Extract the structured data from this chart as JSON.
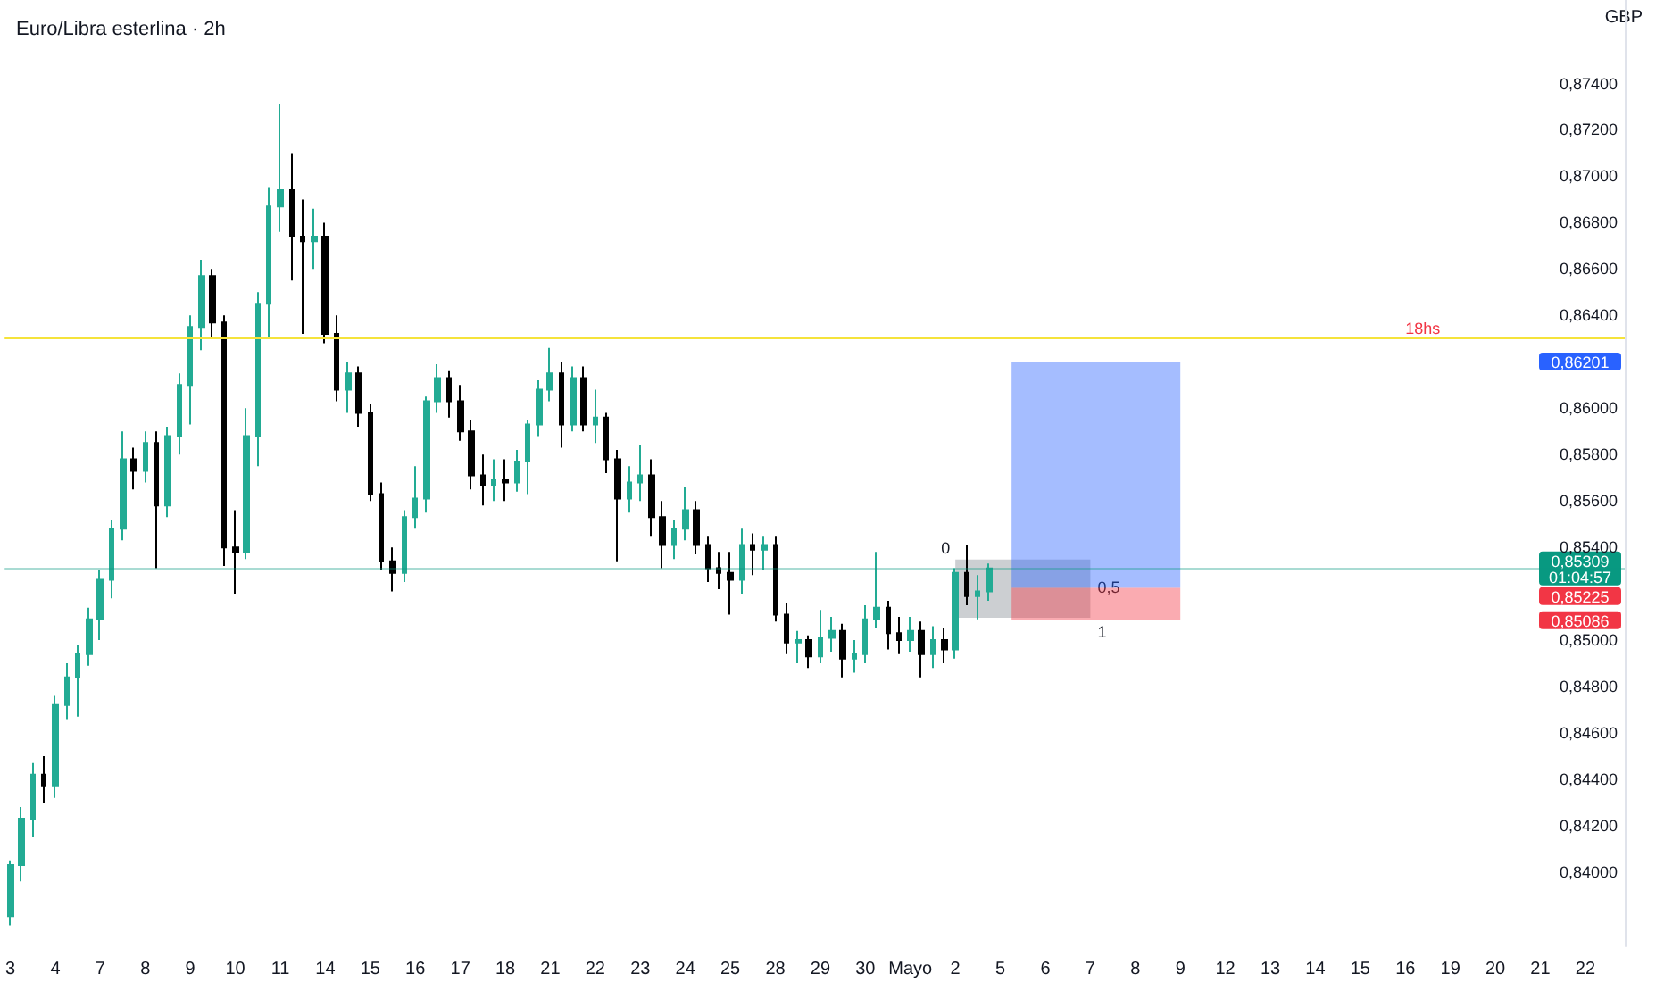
{
  "chart_data": {
    "type": "candlestick",
    "title": "Euro/Libra esterlina · 2h",
    "ylabel": "GBP",
    "categories": [
      "3",
      null,
      null,
      null,
      "4",
      null,
      null,
      null,
      "7",
      null,
      null,
      null,
      "8",
      null,
      null,
      null,
      "9",
      null,
      null,
      null,
      "10",
      null,
      null,
      null,
      "11",
      null,
      null,
      null,
      "14",
      null,
      null,
      null,
      "15",
      null,
      null,
      null,
      "16",
      null,
      null,
      null,
      "17",
      null,
      null,
      null,
      "18",
      null,
      null,
      null,
      "21",
      null,
      null,
      null,
      "22",
      null,
      null,
      null,
      "23",
      null,
      null,
      null,
      "24",
      null,
      null,
      null,
      "25",
      null,
      null,
      null,
      "28",
      null,
      null,
      null,
      "29",
      null,
      null,
      null,
      "30",
      null,
      null,
      null,
      "Mayo",
      null,
      null,
      null,
      "2",
      null,
      null,
      null,
      "5",
      null,
      null,
      null,
      "6",
      null,
      null,
      null,
      "7",
      null,
      null,
      null,
      "8",
      null,
      null,
      null,
      "9",
      null,
      null,
      null,
      "12",
      null,
      null,
      null,
      "13",
      null,
      null,
      null,
      "14",
      null,
      null,
      null,
      "15",
      null,
      null,
      null,
      "16",
      null,
      null,
      null,
      "19",
      null,
      null,
      null,
      "20",
      null,
      null,
      null,
      "21",
      null,
      null,
      null,
      "22",
      null,
      null,
      null
    ],
    "ohlc": [
      [
        0.8381,
        0.8405,
        0.8377,
        0.8403
      ],
      [
        0.8403,
        0.8428,
        0.8396,
        0.8423
      ],
      [
        0.8423,
        0.8447,
        0.8415,
        0.8442
      ],
      [
        0.8442,
        0.845,
        0.843,
        0.8437
      ],
      [
        0.8437,
        0.8476,
        0.8432,
        0.8472
      ],
      [
        0.8472,
        0.849,
        0.8466,
        0.8484
      ],
      [
        0.8484,
        0.8498,
        0.8467,
        0.8494
      ],
      [
        0.8494,
        0.8514,
        0.8489,
        0.8509
      ],
      [
        0.8509,
        0.853,
        0.85,
        0.8526
      ],
      [
        0.8526,
        0.8552,
        0.8518,
        0.8548
      ],
      [
        0.8548,
        0.859,
        0.8543,
        0.8578
      ],
      [
        0.8578,
        0.8583,
        0.8565,
        0.8573
      ],
      [
        0.8573,
        0.859,
        0.8568,
        0.8585
      ],
      [
        0.8585,
        0.859,
        0.8531,
        0.8558
      ],
      [
        0.8558,
        0.8592,
        0.8553,
        0.8588
      ],
      [
        0.8588,
        0.8615,
        0.858,
        0.861
      ],
      [
        0.861,
        0.864,
        0.8593,
        0.8635
      ],
      [
        0.8635,
        0.8664,
        0.8625,
        0.8657
      ],
      [
        0.8657,
        0.866,
        0.863,
        0.8637
      ],
      [
        0.8637,
        0.864,
        0.8532,
        0.854
      ],
      [
        0.854,
        0.8556,
        0.852,
        0.8538
      ],
      [
        0.8538,
        0.86,
        0.8535,
        0.8588
      ],
      [
        0.8588,
        0.865,
        0.8575,
        0.8645
      ],
      [
        0.8645,
        0.8695,
        0.863,
        0.8687
      ],
      [
        0.8687,
        0.8731,
        0.8676,
        0.8694
      ],
      [
        0.8694,
        0.871,
        0.8655,
        0.8674
      ],
      [
        0.8674,
        0.869,
        0.8632,
        0.8672
      ],
      [
        0.8672,
        0.8686,
        0.866,
        0.8674
      ],
      [
        0.8674,
        0.868,
        0.8628,
        0.8632
      ],
      [
        0.8632,
        0.864,
        0.8603,
        0.8608
      ],
      [
        0.8608,
        0.862,
        0.8598,
        0.8615
      ],
      [
        0.8615,
        0.8618,
        0.8592,
        0.8598
      ],
      [
        0.8598,
        0.8602,
        0.856,
        0.8563
      ],
      [
        0.8563,
        0.8568,
        0.853,
        0.8534
      ],
      [
        0.8534,
        0.854,
        0.8521,
        0.8529
      ],
      [
        0.8529,
        0.8556,
        0.8525,
        0.8553
      ],
      [
        0.8553,
        0.8575,
        0.8548,
        0.8561
      ],
      [
        0.8561,
        0.8605,
        0.8555,
        0.8603
      ],
      [
        0.8603,
        0.8619,
        0.8598,
        0.8613
      ],
      [
        0.8613,
        0.8616,
        0.8596,
        0.8603
      ],
      [
        0.8603,
        0.861,
        0.8586,
        0.859
      ],
      [
        0.859,
        0.8595,
        0.8565,
        0.8571
      ],
      [
        0.8571,
        0.858,
        0.8558,
        0.8567
      ],
      [
        0.8567,
        0.8578,
        0.856,
        0.8569
      ],
      [
        0.8569,
        0.8578,
        0.856,
        0.8568
      ],
      [
        0.8568,
        0.8582,
        0.8564,
        0.8577
      ],
      [
        0.8577,
        0.8595,
        0.8563,
        0.8593
      ],
      [
        0.8593,
        0.8612,
        0.8588,
        0.8608
      ],
      [
        0.8608,
        0.8626,
        0.8603,
        0.8615
      ],
      [
        0.8615,
        0.862,
        0.8583,
        0.8593
      ],
      [
        0.8593,
        0.8618,
        0.859,
        0.8613
      ],
      [
        0.8613,
        0.8618,
        0.859,
        0.8593
      ],
      [
        0.8593,
        0.8608,
        0.8585,
        0.8596
      ],
      [
        0.8596,
        0.8598,
        0.8572,
        0.8578
      ],
      [
        0.8578,
        0.8582,
        0.8534,
        0.8561
      ],
      [
        0.8561,
        0.8575,
        0.8555,
        0.8568
      ],
      [
        0.8568,
        0.8584,
        0.856,
        0.8571
      ],
      [
        0.8571,
        0.8578,
        0.8545,
        0.8553
      ],
      [
        0.8553,
        0.856,
        0.8531,
        0.8541
      ],
      [
        0.8541,
        0.8552,
        0.8535,
        0.8548
      ],
      [
        0.8548,
        0.8566,
        0.8543,
        0.8556
      ],
      [
        0.8556,
        0.856,
        0.8537,
        0.8541
      ],
      [
        0.8541,
        0.8545,
        0.8525,
        0.8531
      ],
      [
        0.8531,
        0.8538,
        0.8522,
        0.8529
      ],
      [
        0.8529,
        0.8538,
        0.8511,
        0.8526
      ],
      [
        0.8526,
        0.8548,
        0.852,
        0.8541
      ],
      [
        0.8541,
        0.8546,
        0.8528,
        0.8539
      ],
      [
        0.8539,
        0.8545,
        0.853,
        0.8541
      ],
      [
        0.8541,
        0.8545,
        0.8508,
        0.8511
      ],
      [
        0.8511,
        0.8516,
        0.8494,
        0.8499
      ],
      [
        0.8499,
        0.8504,
        0.849,
        0.85
      ],
      [
        0.85,
        0.8502,
        0.8488,
        0.8493
      ],
      [
        0.8493,
        0.8513,
        0.849,
        0.8501
      ],
      [
        0.8501,
        0.851,
        0.8495,
        0.8504
      ],
      [
        0.8504,
        0.8507,
        0.8484,
        0.8492
      ],
      [
        0.8492,
        0.85,
        0.8486,
        0.8494
      ],
      [
        0.8494,
        0.8515,
        0.849,
        0.8509
      ],
      [
        0.8509,
        0.8538,
        0.8505,
        0.8514
      ],
      [
        0.8514,
        0.8517,
        0.8496,
        0.8503
      ],
      [
        0.8503,
        0.851,
        0.8494,
        0.85
      ],
      [
        0.85,
        0.851,
        0.8495,
        0.8504
      ],
      [
        0.8504,
        0.8508,
        0.8484,
        0.8494
      ],
      [
        0.8494,
        0.8506,
        0.8488,
        0.85
      ],
      [
        0.85,
        0.8505,
        0.849,
        0.8496
      ],
      [
        0.8496,
        0.8531,
        0.8492,
        0.8529
      ],
      [
        0.8529,
        0.8541,
        0.8515,
        0.8519
      ],
      [
        0.8519,
        0.8528,
        0.8509,
        0.8521
      ],
      [
        0.8521,
        0.8533,
        0.8517,
        0.85309
      ],
      null,
      null,
      null,
      null,
      null,
      null,
      null,
      null,
      null,
      null,
      null,
      null,
      null,
      null,
      null,
      null,
      null,
      null,
      null,
      null,
      null,
      null,
      null,
      null,
      null,
      null,
      null,
      null,
      null,
      null,
      null,
      null,
      null,
      null,
      null,
      null,
      null,
      null,
      null,
      null,
      null,
      null,
      null,
      null,
      null,
      null,
      null,
      null,
      null,
      null,
      null,
      null,
      null,
      null,
      null,
      null
    ],
    "colors": [
      "#22ab94",
      "#22ab94",
      "#22ab94",
      "#000000",
      "#22ab94",
      "#22ab94",
      "#22ab94",
      "#22ab94",
      "#22ab94",
      "#22ab94",
      "#22ab94",
      "#000000",
      "#22ab94",
      "#000000",
      "#22ab94",
      "#22ab94",
      "#22ab94",
      "#22ab94",
      "#000000",
      "#000000",
      "#000000",
      "#22ab94",
      "#22ab94",
      "#22ab94",
      "#22ab94",
      "#000000",
      "#000000",
      "#22ab94",
      "#000000",
      "#000000",
      "#22ab94",
      "#000000",
      "#000000",
      "#000000",
      "#000000",
      "#22ab94",
      "#22ab94",
      "#22ab94",
      "#22ab94",
      "#000000",
      "#000000",
      "#000000",
      "#000000",
      "#22ab94",
      "#000000",
      "#22ab94",
      "#22ab94",
      "#22ab94",
      "#22ab94",
      "#000000",
      "#22ab94",
      "#000000",
      "#22ab94",
      "#000000",
      "#000000",
      "#22ab94",
      "#22ab94",
      "#000000",
      "#000000",
      "#22ab94",
      "#22ab94",
      "#000000",
      "#000000",
      "#000000",
      "#000000",
      "#22ab94",
      "#000000",
      "#22ab94",
      "#000000",
      "#000000",
      "#22ab94",
      "#000000",
      "#22ab94",
      "#22ab94",
      "#000000",
      "#22ab94",
      "#22ab94",
      "#22ab94",
      "#000000",
      "#000000",
      "#22ab94",
      "#000000",
      "#22ab94",
      "#000000",
      "#22ab94",
      "#000000",
      "#22ab94",
      "#22ab94",
      null,
      null,
      null,
      null,
      null,
      null,
      null,
      null,
      null,
      null,
      null,
      null,
      null,
      null,
      null,
      null,
      null,
      null,
      null,
      null,
      null,
      null,
      null,
      null,
      null,
      null,
      null,
      null,
      null,
      null,
      null,
      null,
      null,
      null,
      null,
      null,
      null,
      null,
      null,
      null,
      null,
      null,
      null,
      null,
      null,
      null,
      null,
      null,
      null,
      null,
      null,
      null,
      null,
      null,
      null,
      null
    ],
    "ylim": [
      0.8368,
      0.8776
    ],
    "yticks": [
      {
        "value": 0.84,
        "label": "0,84000"
      },
      {
        "value": 0.842,
        "label": "0,84200"
      },
      {
        "value": 0.844,
        "label": "0,84400"
      },
      {
        "value": 0.846,
        "label": "0,84600"
      },
      {
        "value": 0.848,
        "label": "0,84800"
      },
      {
        "value": 0.85,
        "label": "0,85000"
      },
      {
        "value": 0.854,
        "label": "0,85400"
      },
      {
        "value": 0.856,
        "label": "0,85600"
      },
      {
        "value": 0.858,
        "label": "0,85800"
      },
      {
        "value": 0.86,
        "label": "0,86000"
      },
      {
        "value": 0.864,
        "label": "0,86400"
      },
      {
        "value": 0.866,
        "label": "0,86600"
      },
      {
        "value": 0.868,
        "label": "0,86800"
      },
      {
        "value": 0.87,
        "label": "0,87000"
      },
      {
        "value": 0.872,
        "label": "0,87200"
      },
      {
        "value": 0.874,
        "label": "0,87400"
      }
    ],
    "ref_lines": [
      {
        "axis": "y",
        "value": 0.863,
        "color": "#f5e33b",
        "line_style": "solid"
      },
      {
        "axis": "y",
        "value": 0.85309,
        "label": "0,85309\n01:04:57",
        "color": "#089981",
        "line_style": "solid"
      }
    ],
    "bands": [
      {
        "axis": "y",
        "from": 0.85096,
        "to": 0.85348,
        "color": "#c3c7ca"
      },
      {
        "axis": "y",
        "from": 0.85225,
        "to": 0.86201,
        "color": "#2962ff"
      },
      {
        "axis": "y",
        "from": 0.85086,
        "to": 0.85225,
        "color": "#f23645"
      }
    ],
    "annotations": [
      "18hs",
      "0",
      "0,5",
      "1",
      "0,86201",
      "0,85225",
      "0,85086"
    ]
  }
}
